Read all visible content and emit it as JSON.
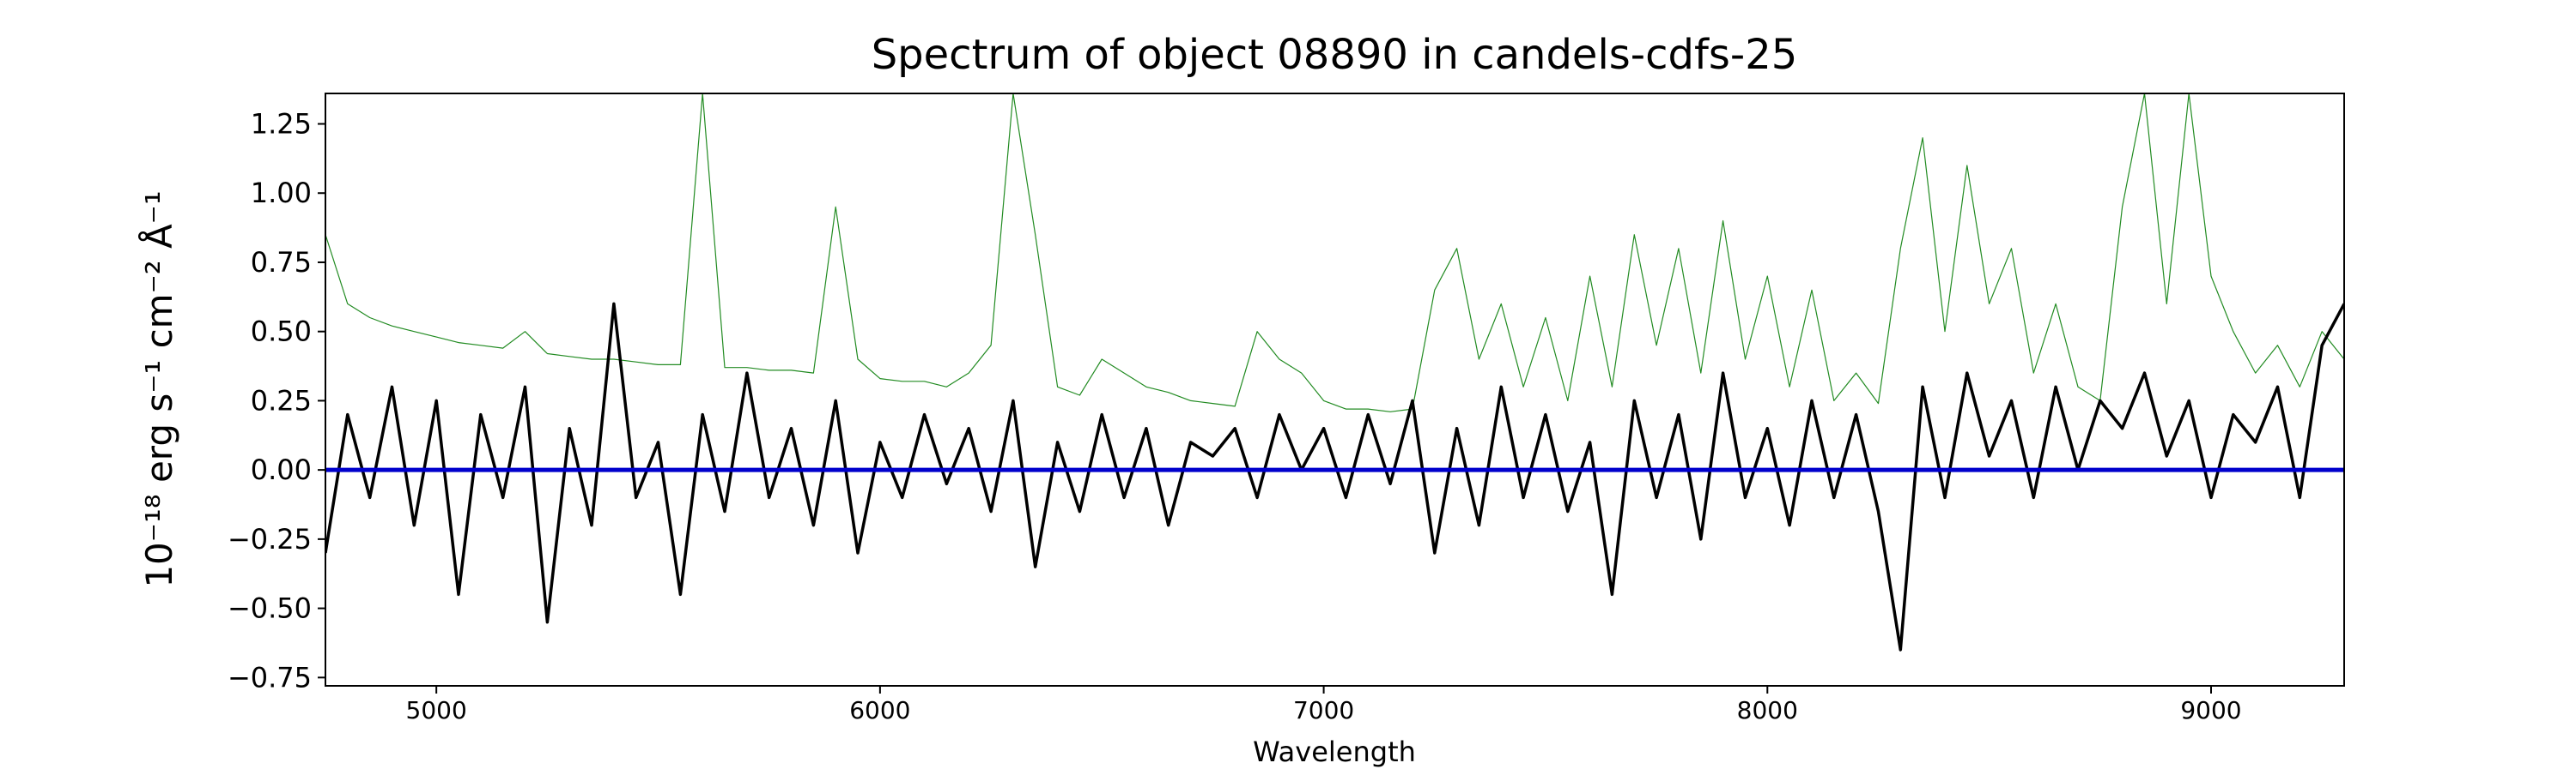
{
  "chart_data": {
    "type": "line",
    "title": "Spectrum of object 08890 in candels-cdfs-25",
    "x_label": "Wavelength",
    "y_label": "10⁻¹⁸ erg s⁻¹ cm⁻² Å⁻¹",
    "xlim": [
      4750,
      9300
    ],
    "ylim": [
      -0.78,
      1.36
    ],
    "xticks": [
      5000,
      6000,
      7000,
      8000,
      9000
    ],
    "yticks": [
      {
        "value": -0.75,
        "label": "−0.75"
      },
      {
        "value": -0.5,
        "label": "−0.50"
      },
      {
        "value": -0.25,
        "label": "−0.25"
      },
      {
        "value": 0,
        "label": "0.00"
      },
      {
        "value": 0.25,
        "label": "0.25"
      },
      {
        "value": 0.5,
        "label": "0.50"
      },
      {
        "value": 0.75,
        "label": "0.75"
      },
      {
        "value": 1,
        "label": "1.00"
      },
      {
        "value": 1.25,
        "label": "1.25"
      }
    ],
    "x": [
      4750,
      4800,
      4850,
      4900,
      4950,
      5000,
      5050,
      5100,
      5150,
      5200,
      5250,
      5300,
      5350,
      5400,
      5450,
      5500,
      5550,
      5600,
      5650,
      5700,
      5750,
      5800,
      5850,
      5900,
      5950,
      6000,
      6050,
      6100,
      6150,
      6200,
      6250,
      6300,
      6350,
      6400,
      6450,
      6500,
      6550,
      6600,
      6650,
      6700,
      6750,
      6800,
      6850,
      6900,
      6950,
      7000,
      7050,
      7100,
      7150,
      7200,
      7250,
      7300,
      7350,
      7400,
      7450,
      7500,
      7550,
      7600,
      7650,
      7700,
      7750,
      7800,
      7850,
      7900,
      7950,
      8000,
      8050,
      8100,
      8150,
      8200,
      8250,
      8300,
      8350,
      8400,
      8450,
      8500,
      8550,
      8600,
      8650,
      8700,
      8750,
      8800,
      8850,
      8900,
      8950,
      9000,
      9050,
      9100,
      9150,
      9200,
      9250,
      9300
    ],
    "series": [
      {
        "color": "#228b22",
        "width": 1.2,
        "values": [
          0.85,
          0.6,
          0.55,
          0.52,
          0.5,
          0.48,
          0.46,
          0.45,
          0.44,
          0.5,
          0.42,
          0.41,
          0.4,
          0.4,
          0.39,
          0.38,
          0.38,
          1.36,
          0.37,
          0.37,
          0.36,
          0.36,
          0.35,
          0.95,
          0.4,
          0.33,
          0.32,
          0.32,
          0.3,
          0.35,
          0.45,
          1.36,
          0.85,
          0.3,
          0.27,
          0.4,
          0.35,
          0.3,
          0.28,
          0.25,
          0.24,
          0.23,
          0.5,
          0.4,
          0.35,
          0.25,
          0.22,
          0.22,
          0.21,
          0.22,
          0.65,
          0.8,
          0.4,
          0.6,
          0.3,
          0.55,
          0.25,
          0.7,
          0.3,
          0.85,
          0.45,
          0.8,
          0.35,
          0.9,
          0.4,
          0.7,
          0.3,
          0.65,
          0.25,
          0.35,
          0.24,
          0.8,
          1.2,
          0.5,
          1.1,
          0.6,
          0.8,
          0.35,
          0.6,
          0.3,
          0.25,
          0.95,
          1.36,
          0.6,
          1.36,
          0.7,
          0.5,
          0.35,
          0.45,
          0.3,
          0.5,
          0.4
        ]
      },
      {
        "color": "#000000",
        "width": 3.5,
        "values": [
          -0.3,
          0.2,
          -0.1,
          0.3,
          -0.2,
          0.25,
          -0.45,
          0.2,
          -0.1,
          0.3,
          -0.55,
          0.15,
          -0.2,
          0.6,
          -0.1,
          0.1,
          -0.45,
          0.2,
          -0.15,
          0.35,
          -0.1,
          0.15,
          -0.2,
          0.25,
          -0.3,
          0.1,
          -0.1,
          0.2,
          -0.05,
          0.15,
          -0.15,
          0.25,
          -0.35,
          0.1,
          -0.15,
          0.2,
          -0.1,
          0.15,
          -0.2,
          0.1,
          0.05,
          0.15,
          -0.1,
          0.2,
          0.0,
          0.15,
          -0.1,
          0.2,
          -0.05,
          0.25,
          -0.3,
          0.15,
          -0.2,
          0.3,
          -0.1,
          0.2,
          -0.15,
          0.1,
          -0.45,
          0.25,
          -0.1,
          0.2,
          -0.25,
          0.35,
          -0.1,
          0.15,
          -0.2,
          0.25,
          -0.1,
          0.2,
          -0.15,
          -0.65,
          0.3,
          -0.1,
          0.35,
          0.05,
          0.25,
          -0.1,
          0.3,
          0.0,
          0.25,
          0.15,
          0.35,
          0.05,
          0.25,
          -0.1,
          0.2,
          0.1,
          0.3,
          -0.1,
          0.45,
          0.6
        ]
      },
      {
        "color": "#0000cc",
        "width": 5,
        "values": [
          0,
          0,
          0,
          0,
          0,
          0,
          0,
          0,
          0,
          0,
          0,
          0,
          0,
          0,
          0,
          0,
          0,
          0,
          0,
          0,
          0,
          0,
          0,
          0,
          0,
          0,
          0,
          0,
          0,
          0,
          0,
          0,
          0,
          0,
          0,
          0,
          0,
          0,
          0,
          0,
          0,
          0,
          0,
          0,
          0,
          0,
          0,
          0,
          0,
          0,
          0,
          0,
          0,
          0,
          0,
          0,
          0,
          0,
          0,
          0,
          0,
          0,
          0,
          0,
          0,
          0,
          0,
          0,
          0,
          0,
          0,
          0,
          0,
          0,
          0,
          0,
          0,
          0,
          0,
          0,
          0,
          0,
          0,
          0,
          0,
          0,
          0,
          0,
          0,
          0,
          0,
          0
        ]
      }
    ]
  }
}
